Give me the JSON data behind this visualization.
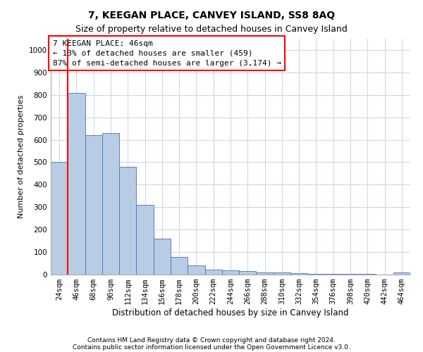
{
  "title": "7, KEEGAN PLACE, CANVEY ISLAND, SS8 8AQ",
  "subtitle": "Size of property relative to detached houses in Canvey Island",
  "xlabel": "Distribution of detached houses by size in Canvey Island",
  "ylabel": "Number of detached properties",
  "footer1": "Contains HM Land Registry data © Crown copyright and database right 2024.",
  "footer2": "Contains public sector information licensed under the Open Government Licence v3.0.",
  "categories": [
    "24sqm",
    "46sqm",
    "68sqm",
    "90sqm",
    "112sqm",
    "134sqm",
    "156sqm",
    "178sqm",
    "200sqm",
    "222sqm",
    "244sqm",
    "266sqm",
    "288sqm",
    "310sqm",
    "332sqm",
    "354sqm",
    "376sqm",
    "398sqm",
    "420sqm",
    "442sqm",
    "464sqm"
  ],
  "values": [
    500,
    810,
    620,
    630,
    480,
    310,
    160,
    78,
    42,
    22,
    20,
    15,
    10,
    8,
    5,
    4,
    3,
    2,
    2,
    1,
    10
  ],
  "bar_color": "#b8cce4",
  "bar_edge_color": "#4472c4",
  "vline_x": 0.5,
  "vline_color": "red",
  "annotation_text": "7 KEEGAN PLACE: 46sqm\n← 13% of detached houses are smaller (459)\n87% of semi-detached houses are larger (3,174) →",
  "ylim": [
    0,
    1050
  ],
  "yticks": [
    0,
    100,
    200,
    300,
    400,
    500,
    600,
    700,
    800,
    900,
    1000
  ],
  "background_color": "#ffffff",
  "grid_color": "#c8d4e8",
  "title_fontsize": 10,
  "subtitle_fontsize": 9,
  "xlabel_fontsize": 8.5,
  "ylabel_fontsize": 8,
  "tick_fontsize": 7.5,
  "annotation_fontsize": 8,
  "footer_fontsize": 6.5
}
